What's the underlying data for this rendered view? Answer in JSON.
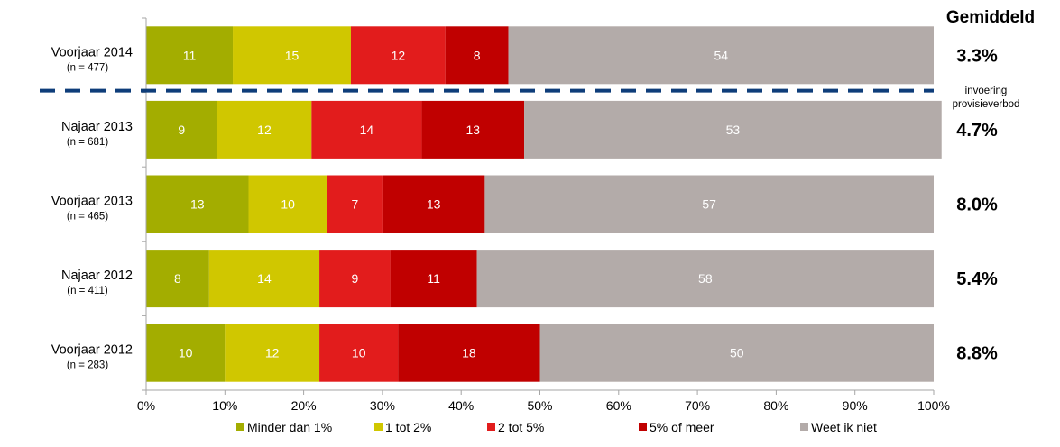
{
  "chart_data": {
    "type": "bar",
    "orientation": "horizontal",
    "stacked": true,
    "percent_stacked": true,
    "title": "",
    "xlabel": "",
    "ylabel": "",
    "xlim": [
      0,
      100
    ],
    "x_ticks": [
      "0%",
      "10%",
      "20%",
      "30%",
      "40%",
      "50%",
      "60%",
      "70%",
      "80%",
      "90%",
      "100%"
    ],
    "grid": false,
    "legend_position": "bottom",
    "categories": [
      {
        "label": "Voorjaar 2014",
        "n": "(n = 477)"
      },
      {
        "label": "Najaar 2013",
        "n": "(n = 681)"
      },
      {
        "label": "Voorjaar 2013",
        "n": "(n = 465)"
      },
      {
        "label": "Najaar 2012",
        "n": "(n = 411)"
      },
      {
        "label": "Voorjaar 2012",
        "n": "(n = 283)"
      }
    ],
    "series": [
      {
        "name": "Minder dan 1%",
        "color": "#a3ad00",
        "values": [
          11,
          9,
          13,
          8,
          10
        ]
      },
      {
        "name": "1 tot 2%",
        "color": "#d0c700",
        "values": [
          15,
          12,
          10,
          14,
          12
        ]
      },
      {
        "name": "2 tot 5%",
        "color": "#e21c1c",
        "values": [
          12,
          14,
          7,
          9,
          10
        ]
      },
      {
        "name": "5% of meer",
        "color": "#c00000",
        "values": [
          8,
          13,
          13,
          11,
          18
        ]
      },
      {
        "name": "Weet ik niet",
        "color": "#b3aba9",
        "values": [
          54,
          53,
          57,
          58,
          50
        ]
      }
    ],
    "side_column": {
      "title": "Gemiddeld",
      "values": [
        "3.3%",
        "4.7%",
        "8.0%",
        "5.4%",
        "8.8%"
      ]
    },
    "annotation": {
      "text_line1": "invoering",
      "text_line2": "provisieverbod",
      "divider_after_category": 0,
      "divider_color": "#0e3d7a",
      "divider_style": "dashed"
    }
  }
}
